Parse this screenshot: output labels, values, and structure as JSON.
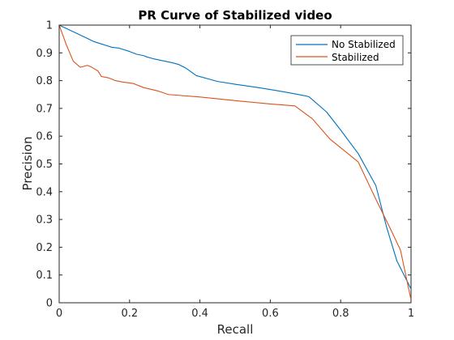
{
  "chart_data": {
    "type": "line",
    "title": "PR Curve of Stabilized video",
    "xlabel": "Recall",
    "ylabel": "Precision",
    "xlim": [
      0,
      1
    ],
    "ylim": [
      0,
      1
    ],
    "xticks": [
      0,
      0.2,
      0.4,
      0.6,
      0.8,
      1
    ],
    "xtick_labels": [
      "0",
      "0.2",
      "0.4",
      "0.6",
      "0.8",
      "1"
    ],
    "yticks": [
      0,
      0.1,
      0.2,
      0.3,
      0.4,
      0.5,
      0.6,
      0.7,
      0.8,
      0.9,
      1
    ],
    "ytick_labels": [
      "0",
      "0.1",
      "0.2",
      "0.3",
      "0.4",
      "0.5",
      "0.6",
      "0.7",
      "0.8",
      "0.9",
      "1"
    ],
    "grid": false,
    "legend_position": "top-right",
    "series": [
      {
        "name": "No Stabilized",
        "color": "#0072BD",
        "x": [
          0,
          0.05,
          0.1,
          0.15,
          0.17,
          0.2,
          0.22,
          0.24,
          0.25,
          0.27,
          0.3,
          0.32,
          0.34,
          0.36,
          0.39,
          0.45,
          0.5,
          0.55,
          0.6,
          0.65,
          0.7,
          0.71,
          0.76,
          0.8,
          0.85,
          0.9,
          0.93,
          0.96,
          1.0
        ],
        "y": [
          1.0,
          0.97,
          0.94,
          0.92,
          0.917,
          0.905,
          0.895,
          0.89,
          0.885,
          0.878,
          0.87,
          0.865,
          0.858,
          0.845,
          0.818,
          0.797,
          0.787,
          0.778,
          0.768,
          0.757,
          0.745,
          0.742,
          0.687,
          0.622,
          0.537,
          0.422,
          0.275,
          0.15,
          0.05
        ]
      },
      {
        "name": "Stabilized",
        "color": "#D95319",
        "x": [
          0,
          0.02,
          0.04,
          0.06,
          0.08,
          0.09,
          0.11,
          0.12,
          0.14,
          0.16,
          0.18,
          0.21,
          0.24,
          0.28,
          0.31,
          0.4,
          0.5,
          0.6,
          0.67,
          0.72,
          0.77,
          0.85,
          0.9,
          0.94,
          0.97,
          1.0
        ],
        "y": [
          1.0,
          0.93,
          0.87,
          0.848,
          0.855,
          0.85,
          0.835,
          0.815,
          0.81,
          0.8,
          0.795,
          0.79,
          0.775,
          0.763,
          0.75,
          0.741,
          0.728,
          0.716,
          0.709,
          0.662,
          0.589,
          0.507,
          0.373,
          0.27,
          0.19,
          0.01
        ]
      }
    ]
  }
}
